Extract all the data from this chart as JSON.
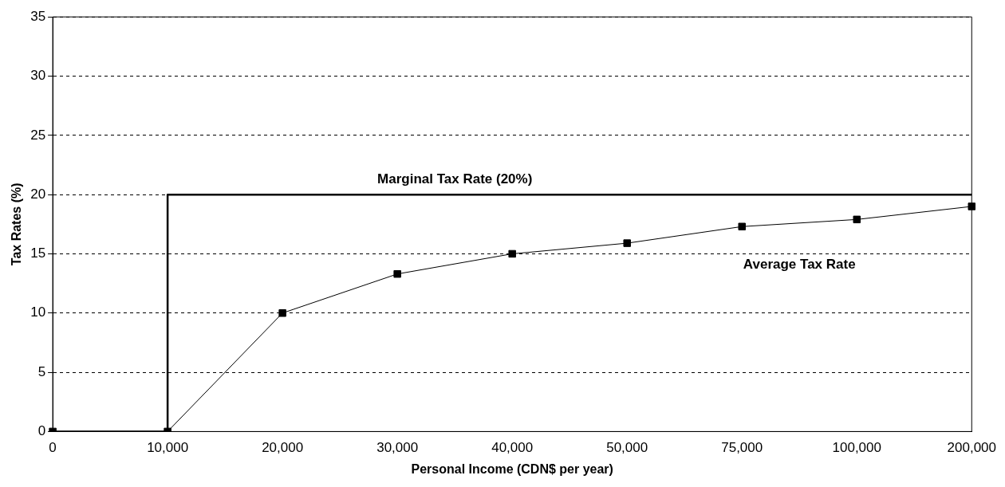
{
  "chart_data": {
    "type": "line",
    "xlabel": "Personal Income (CDN$ per year)",
    "ylabel": "Tax Rates (%)",
    "categories": [
      "0",
      "10,000",
      "20,000",
      "30,000",
      "40,000",
      "50,000",
      "75,000",
      "100,000",
      "200,000"
    ],
    "series": [
      {
        "name": "Marginal Tax Rate (20%)",
        "type": "step",
        "color": "#000000",
        "marker": "none",
        "values": [
          0,
          20,
          20,
          20,
          20,
          20,
          20,
          20,
          20
        ]
      },
      {
        "name": "Average Tax Rate",
        "type": "line",
        "color": "#000000",
        "marker": "square",
        "values": [
          0,
          0,
          10,
          13.3,
          15,
          15.9,
          17.3,
          17.9,
          19
        ]
      }
    ],
    "ylim": [
      0,
      35
    ],
    "yticks": [
      0,
      5,
      10,
      15,
      20,
      25,
      30,
      35
    ],
    "grid": "y",
    "legend": false
  }
}
